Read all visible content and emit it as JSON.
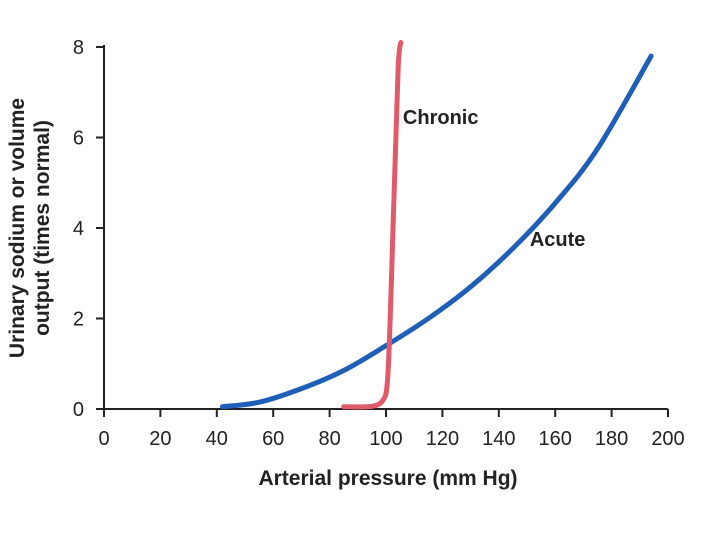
{
  "chart_data": {
    "type": "line",
    "title": "",
    "xlabel": "Arterial pressure (mm Hg)",
    "ylabel": [
      "Urinary sodium or volume",
      "output (times normal)"
    ],
    "xlim": [
      0,
      200
    ],
    "ylim": [
      0,
      8
    ],
    "x_ticks": [
      "0",
      "20",
      "40",
      "60",
      "80",
      "100",
      "120",
      "140",
      "160",
      "180",
      "200"
    ],
    "y_ticks": [
      "0",
      "2",
      "4",
      "6",
      "8"
    ],
    "grid": false,
    "series": [
      {
        "name": "Acute",
        "color": "#1f5fb8",
        "x": [
          42,
          55,
          70,
          85,
          100,
          115,
          130,
          145,
          160,
          175,
          194
        ],
        "y": [
          0.05,
          0.15,
          0.45,
          0.85,
          1.4,
          2.0,
          2.7,
          3.55,
          4.55,
          5.75,
          7.8
        ]
      },
      {
        "name": "Chronic",
        "color": "#e15a6a",
        "x": [
          85,
          95,
          99,
          100.5,
          101.5,
          102.5,
          103.5,
          104.3,
          104.8,
          105.3
        ],
        "y": [
          0.05,
          0.06,
          0.2,
          0.6,
          2.0,
          4.0,
          6.0,
          7.5,
          7.95,
          8.1
        ]
      }
    ],
    "annotations": [
      {
        "text": "Chronic",
        "x": 106,
        "y": 6.3
      },
      {
        "text": "Acute",
        "x": 151,
        "y": 3.6
      }
    ]
  }
}
